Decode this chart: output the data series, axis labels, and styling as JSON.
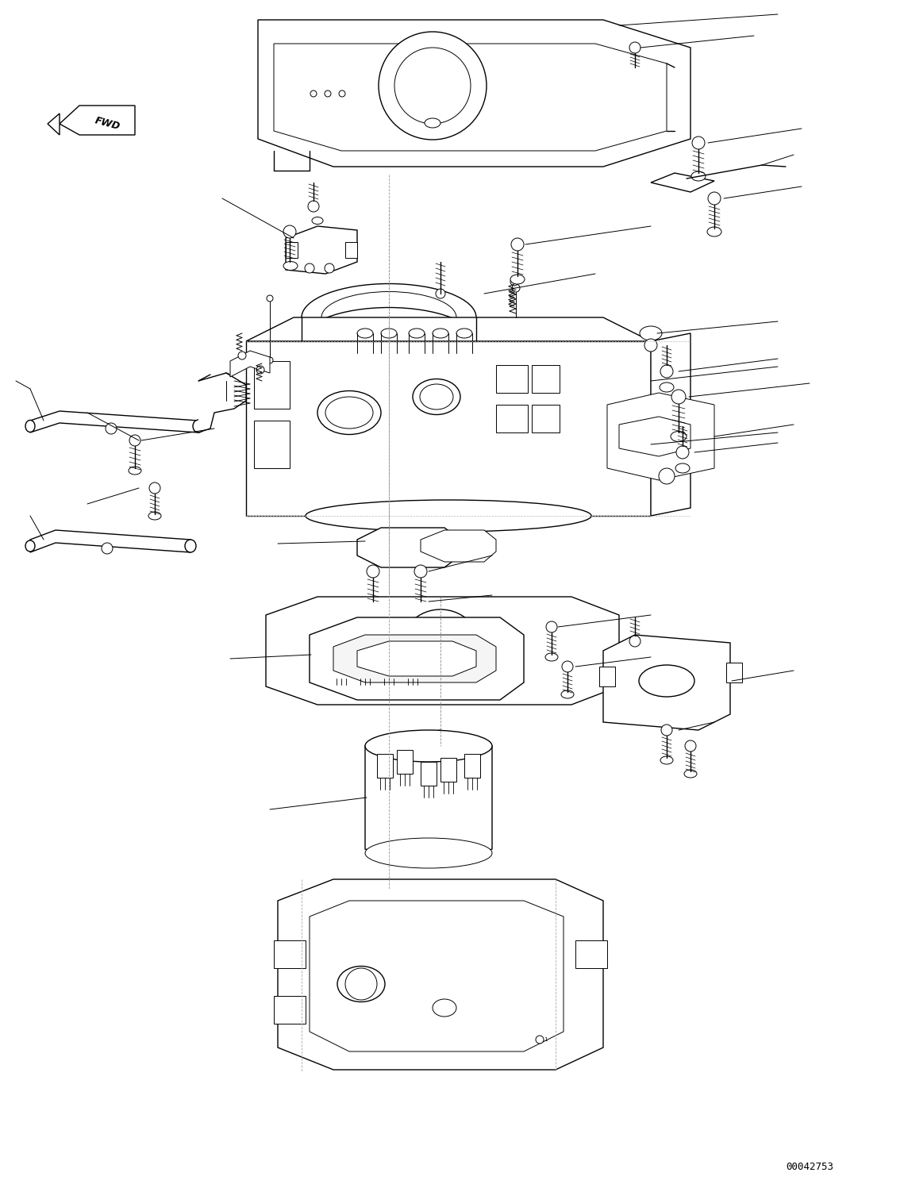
{
  "background_color": "#ffffff",
  "line_color": "#000000",
  "watermark_text": "00042753",
  "fig_width": 11.39,
  "fig_height": 14.92,
  "dpi": 100,
  "lw_thin": 0.7,
  "lw_med": 1.0,
  "lw_thick": 1.3
}
